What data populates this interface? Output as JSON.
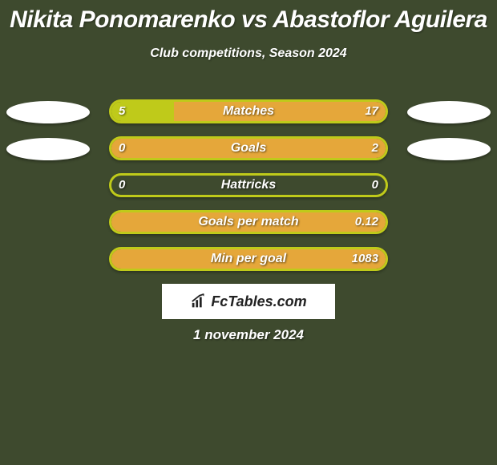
{
  "title": "Nikita Ponomarenko vs Abastoflor Aguilera",
  "subtitle": "Club competitions, Season 2024",
  "date": "1 november 2024",
  "colors": {
    "background": "#3e4a2e",
    "avatar": "#ffffff",
    "bar_left": "#bfca1a",
    "bar_right": "#e5a73a",
    "bar_border": "#bfca1a",
    "track_bg": "#3e4a2e",
    "logo_bg": "#ffffff",
    "logo_text": "#222222"
  },
  "chart": {
    "type": "comparison-bar",
    "track_width": 348,
    "track_height": 30,
    "border_radius": 16,
    "font_size_label": 16,
    "font_size_value": 15
  },
  "stats": [
    {
      "label": "Matches",
      "left_val": "5",
      "right_val": "17",
      "left_pct": 22.7,
      "right_pct": 77.3,
      "show_left_avatar": true,
      "show_right_avatar": true
    },
    {
      "label": "Goals",
      "left_val": "0",
      "right_val": "2",
      "left_pct": 0,
      "right_pct": 100,
      "show_left_avatar": true,
      "show_right_avatar": true
    },
    {
      "label": "Hattricks",
      "left_val": "0",
      "right_val": "0",
      "left_pct": 0,
      "right_pct": 0,
      "show_left_avatar": false,
      "show_right_avatar": false
    },
    {
      "label": "Goals per match",
      "left_val": "",
      "right_val": "0.12",
      "left_pct": 0,
      "right_pct": 100,
      "show_left_avatar": false,
      "show_right_avatar": false
    },
    {
      "label": "Min per goal",
      "left_val": "",
      "right_val": "1083",
      "left_pct": 0,
      "right_pct": 100,
      "show_left_avatar": false,
      "show_right_avatar": false
    }
  ],
  "logo": {
    "text": "FcTables.com"
  }
}
